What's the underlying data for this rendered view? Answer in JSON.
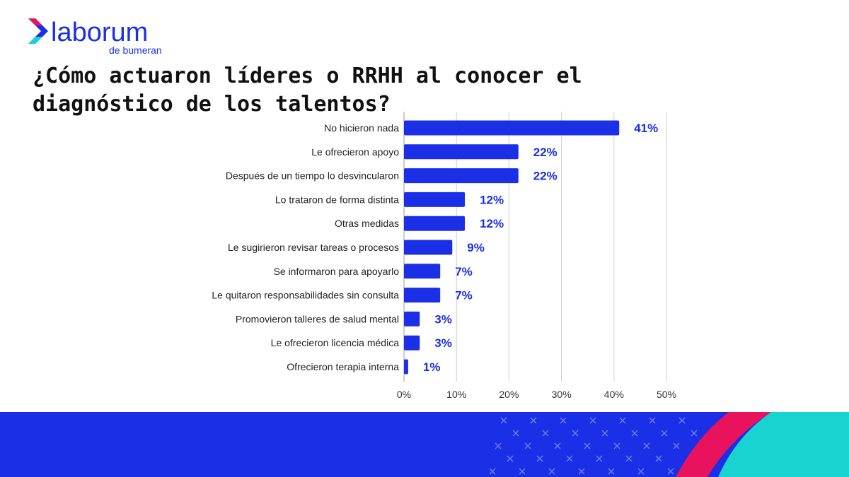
{
  "brand": {
    "name": "laborum",
    "tagline": "de bumeran",
    "colors": {
      "primary": "#1b2fe6",
      "accent_pink": "#e8135c",
      "accent_teal": "#19d3d0",
      "text": "#111111",
      "grid": "#d0d0d0"
    }
  },
  "chart_data": {
    "type": "bar",
    "orientation": "horizontal",
    "title": "¿Cómo actuaron líderes o RRHH al conocer el diagnóstico de los talentos?",
    "categories": [
      "No hicieron nada",
      "Le ofrecieron apoyo",
      "Después de un tiempo lo desvincularon",
      "Lo trataron de forma distinta",
      "Otras medidas",
      "Le sugirieron revisar tareas o procesos",
      "Se informaron para apoyarlo",
      "Le quitaron responsabilidades sin consulta",
      "Promovieron talleres de salud mental",
      "Le ofrecieron licencia médica",
      "Ofrecieron terapia interna"
    ],
    "values": [
      41,
      22,
      22,
      12,
      12,
      9,
      7,
      7,
      3,
      3,
      1
    ],
    "value_labels": [
      "41%",
      "22%",
      "22%",
      "12%",
      "12%",
      "9%",
      "7%",
      "7%",
      "3%",
      "3%",
      "1%"
    ],
    "bar_fill_values": [
      41,
      21.8,
      21.8,
      11.6,
      11.6,
      9.2,
      6.9,
      6.9,
      3,
      3,
      0.8
    ],
    "x_ticks": [
      0,
      10,
      20,
      30,
      40,
      50
    ],
    "x_tick_labels": [
      "0%",
      "10%",
      "20%",
      "30%",
      "40%",
      "50%"
    ],
    "xlim": [
      0,
      50
    ],
    "grid": true,
    "bar_color": "#1b2fe6",
    "label_color": "#1b2fe6"
  }
}
